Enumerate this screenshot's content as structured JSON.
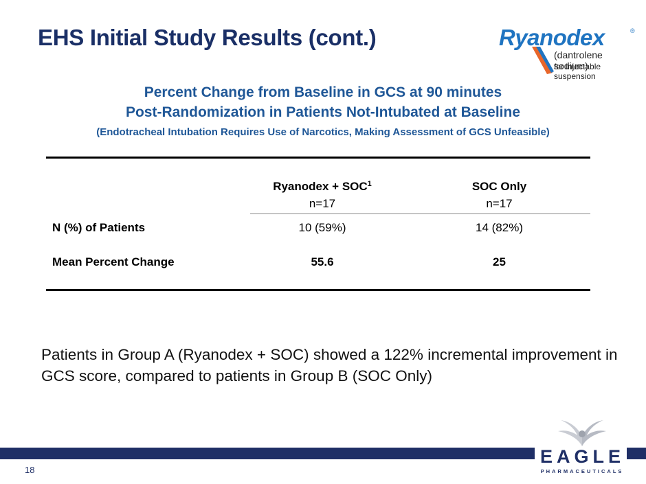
{
  "title": "EHS Initial Study Results (cont.)",
  "logo": {
    "name": "Ryanodex",
    "registered": "®",
    "line2": "(dantrolene sodium)",
    "line3": "for injectable suspension"
  },
  "subtitle": {
    "line1": "Percent Change from Baseline in GCS at 90 minutes",
    "line2": "Post-Randomization in Patients Not-Intubated at Baseline",
    "line3": "(Endotracheal Intubation Requires Use of Narcotics, Making Assessment of GCS Unfeasible)"
  },
  "table": {
    "columns": [
      {
        "header": "Ryanodex + SOC",
        "footnote": "1",
        "n": "n=17"
      },
      {
        "header": "SOC Only",
        "footnote": "",
        "n": "n=17"
      }
    ],
    "rows": [
      {
        "label": "N (%) of Patients",
        "values": [
          "10 (59%)",
          "14 (82%)"
        ]
      },
      {
        "label": "Mean Percent Change",
        "values": [
          "55.6",
          "25"
        ]
      }
    ]
  },
  "body_text": "Patients in Group A (Ryanodex + SOC) showed a 122% incremental improvement in GCS score, compared to patients in Group B (SOC Only)",
  "footer": {
    "page_number": "18",
    "company_name": "EAGLE",
    "company_sub": "PHARMACEUTICALS"
  },
  "colors": {
    "title": "#1a2f66",
    "subtitle": "#1f5797",
    "footer_bar": "#1f2f66",
    "logo_blue": "#1f74c1"
  }
}
